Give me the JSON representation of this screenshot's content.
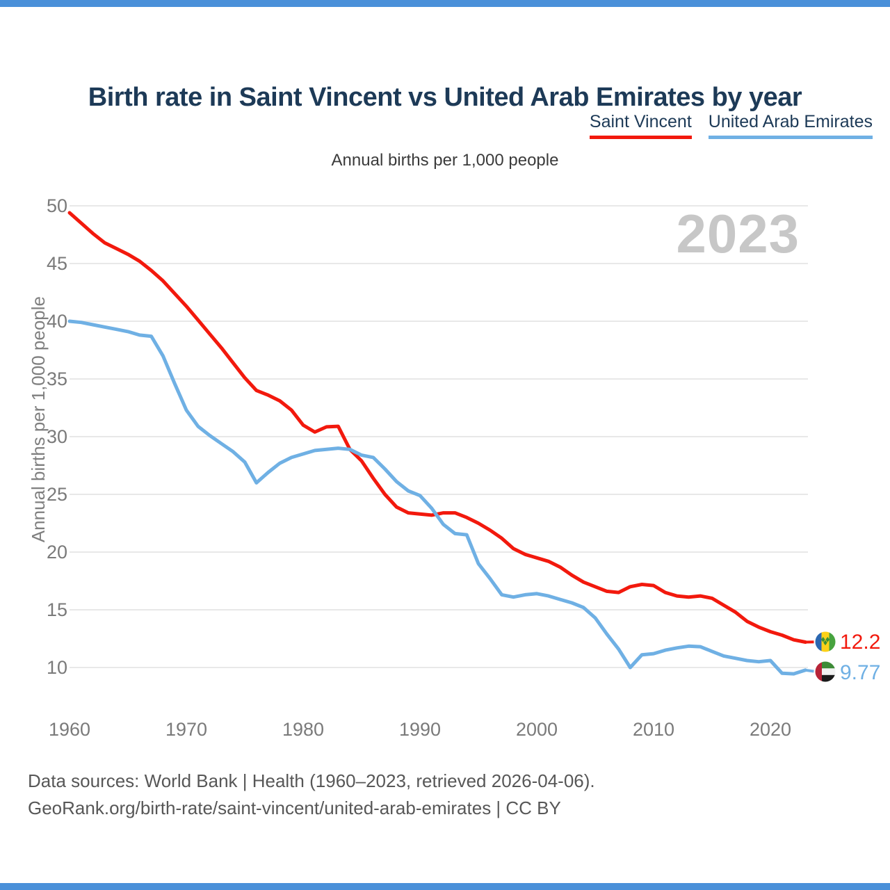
{
  "page": {
    "accent_color": "#4a90d9",
    "background": "#ffffff"
  },
  "header": {
    "title": "Birth rate in Saint Vincent vs United Arab Emirates by year",
    "subtitle": "Annual births per 1,000 people",
    "watermark": "2023"
  },
  "footer": {
    "line1": "Data sources: World Bank | Health (1960–2023, retrieved 2026-04-06).",
    "line2": "GeoRank.org/birth-rate/saint-vincent/united-arab-emirates | CC BY"
  },
  "chart_data": {
    "type": "line",
    "title": "Birth rate in Saint Vincent vs United Arab Emirates by year",
    "subtitle": "Annual births per 1,000 people",
    "ylabel": "Annual births per 1,000 people",
    "xlabel": "",
    "x_range": [
      1960,
      2023
    ],
    "x_step": 1,
    "ylim": [
      10,
      50
    ],
    "grid": "horizontal",
    "legend_position": "top-right",
    "x_ticks": [
      1960,
      1970,
      1980,
      1990,
      2000,
      2010,
      2020
    ],
    "y_ticks_display": [
      50,
      45,
      40,
      35,
      30,
      25,
      20,
      15,
      10
    ],
    "series": [
      {
        "name": "Saint Vincent",
        "color": "#f2190d",
        "end_label": "12.2",
        "end_value": 12.2,
        "flag": "saint-vincent",
        "values": [
          49.4,
          48.5,
          47.6,
          46.8,
          46.3,
          45.8,
          45.2,
          44.4,
          43.5,
          42.4,
          41.3,
          40.1,
          38.9,
          37.7,
          36.4,
          35.1,
          34.0,
          33.6,
          33.1,
          32.3,
          31.0,
          30.4,
          30.85,
          30.9,
          28.9,
          27.9,
          26.4,
          25.0,
          23.9,
          23.4,
          23.3,
          23.2,
          23.4,
          23.4,
          23.0,
          22.5,
          21.9,
          21.2,
          20.3,
          19.8,
          19.5,
          19.2,
          18.7,
          18.0,
          17.4,
          17.0,
          16.6,
          16.5,
          17.0,
          17.2,
          17.1,
          16.5,
          16.2,
          16.1,
          16.2,
          16.0,
          15.4,
          14.8,
          14.0,
          13.5,
          13.1,
          12.8,
          12.4,
          12.2
        ]
      },
      {
        "name": "United Arab Emirates",
        "color": "#6fb0e4",
        "end_label": "9.77",
        "end_value": 9.77,
        "flag": "united-arab-emirates",
        "values": [
          40.0,
          39.9,
          39.7,
          39.5,
          39.3,
          39.1,
          38.8,
          38.7,
          37.0,
          34.6,
          32.3,
          30.9,
          30.1,
          29.4,
          28.7,
          27.8,
          26.0,
          26.9,
          27.7,
          28.2,
          28.5,
          28.8,
          28.9,
          29.0,
          28.9,
          28.4,
          28.2,
          27.2,
          26.1,
          25.3,
          24.9,
          23.8,
          22.4,
          21.6,
          21.5,
          19.0,
          17.7,
          16.3,
          16.1,
          16.3,
          16.4,
          16.2,
          15.9,
          15.6,
          15.2,
          14.3,
          12.9,
          11.6,
          10.0,
          11.1,
          11.2,
          11.5,
          11.7,
          11.85,
          11.8,
          11.4,
          11.0,
          10.8,
          10.6,
          10.5,
          10.6,
          9.5,
          9.45,
          9.77
        ]
      }
    ]
  }
}
